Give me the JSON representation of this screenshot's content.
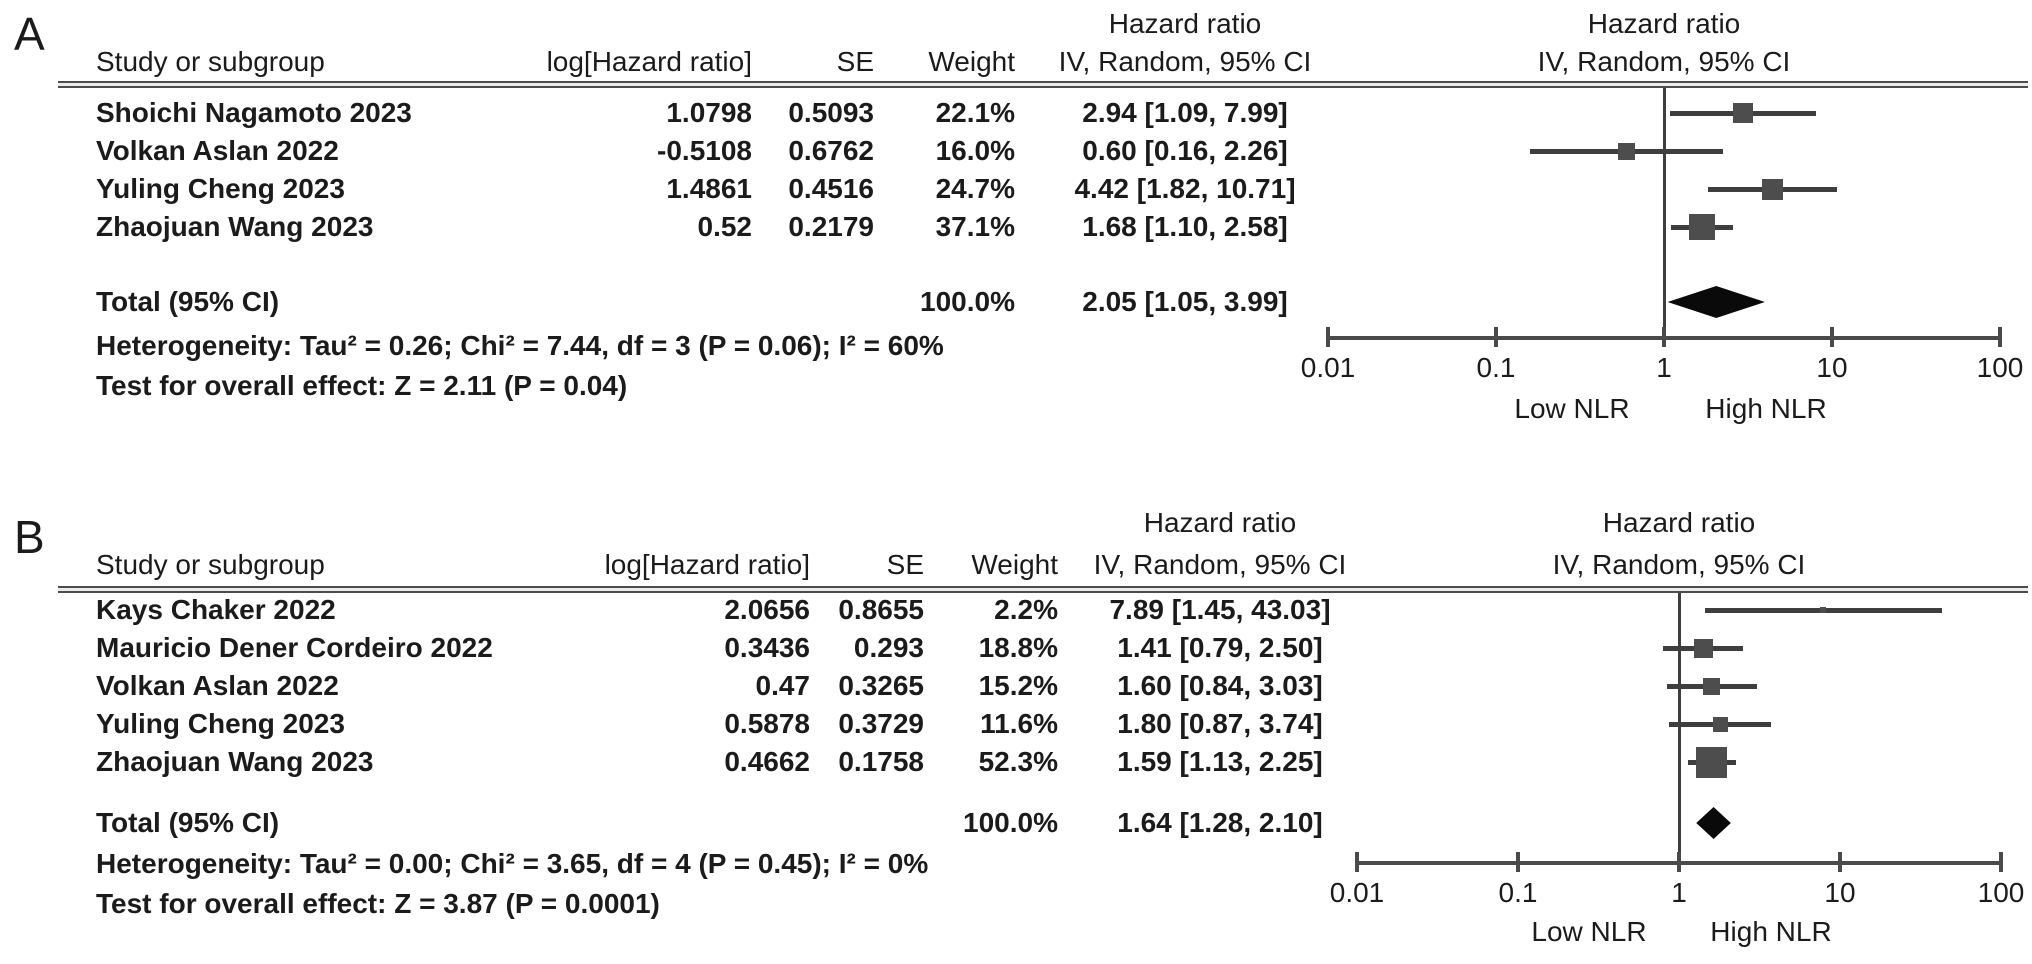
{
  "colors": {
    "text": "#1b1b1b",
    "ci_line": "#3e3e3e",
    "study_marker": "#4d4d4d",
    "summary_diamond": "#0a0a0a",
    "rule": "#4c4c4c",
    "background": "#ffffff"
  },
  "chart_data": [
    {
      "type": "scatter",
      "variant": "forest-plot",
      "panel_label": "A",
      "headers": {
        "hazard_ratio": "Hazard ratio",
        "study": "Study or subgroup",
        "log_hr": "log[Hazard ratio]",
        "se": "SE",
        "weight": "Weight",
        "ci": "IV, Random, 95% CI"
      },
      "studies": [
        {
          "name": "Shoichi Nagamoto 2023",
          "log_hr": "1.0798",
          "se": "0.5093",
          "weight": "22.1%",
          "weight_value": 22.1,
          "ci_label": "2.94 [1.09, 7.99]",
          "hr": 2.94,
          "ci_low": 1.09,
          "ci_high": 7.99
        },
        {
          "name": "Volkan Aslan 2022",
          "log_hr": "-0.5108",
          "se": "0.6762",
          "weight": "16.0%",
          "weight_value": 16.0,
          "ci_label": "0.60 [0.16, 2.26]",
          "hr": 0.6,
          "ci_low": 0.16,
          "ci_high": 2.26
        },
        {
          "name": "Yuling Cheng 2023",
          "log_hr": "1.4861",
          "se": "0.4516",
          "weight": "24.7%",
          "weight_value": 24.7,
          "ci_label": "4.42 [1.82, 10.71]",
          "hr": 4.42,
          "ci_low": 1.82,
          "ci_high": 10.71
        },
        {
          "name": "Zhaojuan Wang 2023",
          "log_hr": "0.52",
          "se": "0.2179",
          "weight": "37.1%",
          "weight_value": 37.1,
          "ci_label": "1.68 [1.10, 2.58]",
          "hr": 1.68,
          "ci_low": 1.1,
          "ci_high": 2.58
        }
      ],
      "total": {
        "label": "Total (95% CI)",
        "weight": "100.0%",
        "ci_label": "2.05 [1.05, 3.99]",
        "hr": 2.05,
        "ci_low": 1.05,
        "ci_high": 3.99
      },
      "heterogeneity": "Heterogeneity: Tau² = 0.26; Chi² = 7.44, df = 3 (P = 0.06); I² = 60%",
      "overall_effect": "Test for overall effect: Z = 2.11 (P = 0.04)",
      "axis": {
        "scale": "log10",
        "xlim": [
          0.01,
          100
        ],
        "ticks": [
          0.01,
          0.1,
          1,
          10,
          100
        ],
        "tick_labels": [
          "0.01",
          "0.1",
          "1",
          "10",
          "100"
        ],
        "left_label": "Low NLR",
        "right_label": "High NLR"
      }
    },
    {
      "type": "scatter",
      "variant": "forest-plot",
      "panel_label": "B",
      "headers": {
        "hazard_ratio": "Hazard ratio",
        "study": "Study or subgroup",
        "log_hr": "log[Hazard ratio]",
        "se": "SE",
        "weight": "Weight",
        "ci": "IV, Random, 95% CI"
      },
      "studies": [
        {
          "name": "Kays Chaker 2022",
          "log_hr": "2.0656",
          "se": "0.8655",
          "weight": "2.2%",
          "weight_value": 2.2,
          "ci_label": "7.89 [1.45, 43.03]",
          "hr": 7.89,
          "ci_low": 1.45,
          "ci_high": 43.03
        },
        {
          "name": "Mauricio Dener Cordeiro 2022",
          "log_hr": "0.3436",
          "se": "0.293",
          "weight": "18.8%",
          "weight_value": 18.8,
          "ci_label": "1.41 [0.79, 2.50]",
          "hr": 1.41,
          "ci_low": 0.79,
          "ci_high": 2.5
        },
        {
          "name": "Volkan Aslan 2022",
          "log_hr": "0.47",
          "se": "0.3265",
          "weight": "15.2%",
          "weight_value": 15.2,
          "ci_label": "1.60 [0.84, 3.03]",
          "hr": 1.6,
          "ci_low": 0.84,
          "ci_high": 3.03
        },
        {
          "name": "Yuling Cheng 2023",
          "log_hr": "0.5878",
          "se": "0.3729",
          "weight": "11.6%",
          "weight_value": 11.6,
          "ci_label": "1.80 [0.87, 3.74]",
          "hr": 1.8,
          "ci_low": 0.87,
          "ci_high": 3.74
        },
        {
          "name": "Zhaojuan Wang 2023",
          "log_hr": "0.4662",
          "se": "0.1758",
          "weight": "52.3%",
          "weight_value": 52.3,
          "ci_label": "1.59 [1.13, 2.25]",
          "hr": 1.59,
          "ci_low": 1.13,
          "ci_high": 2.25
        }
      ],
      "total": {
        "label": "Total (95% CI)",
        "weight": "100.0%",
        "ci_label": "1.64 [1.28, 2.10]",
        "hr": 1.64,
        "ci_low": 1.28,
        "ci_high": 2.1
      },
      "heterogeneity": "Heterogeneity: Tau² = 0.00; Chi² = 3.65, df = 4 (P = 0.45); I² = 0%",
      "overall_effect": "Test for overall effect: Z = 3.87 (P = 0.0001)",
      "axis": {
        "scale": "log10",
        "xlim": [
          0.01,
          100
        ],
        "ticks": [
          0.01,
          0.1,
          1,
          10,
          100
        ],
        "tick_labels": [
          "0.01",
          "0.1",
          "1",
          "10",
          "100"
        ],
        "left_label": "Low NLR",
        "right_label": "High NLR"
      }
    }
  ]
}
